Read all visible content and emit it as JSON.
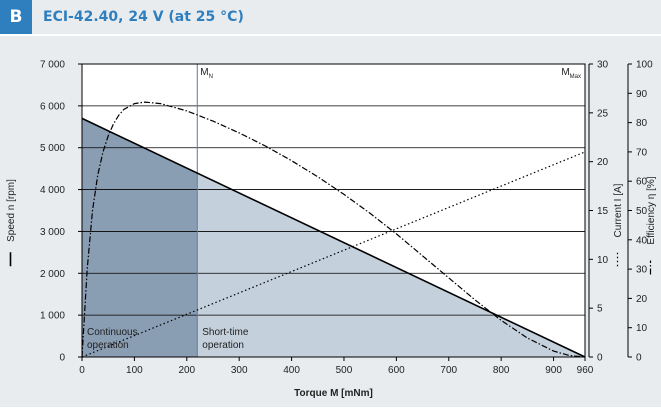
{
  "header": {
    "badge": "B",
    "title": "ECI-42.40, 24 V (at 25 °C)"
  },
  "colors": {
    "accent": "#2f7fbf",
    "panel": "#e9ecef",
    "continuous_fill": "#8a9eb3",
    "short_time_fill": "#c4d0dc"
  },
  "chart_data": {
    "type": "line",
    "xlabel": "Torque M [mNm]",
    "x_ticks": [
      0,
      100,
      200,
      300,
      400,
      500,
      600,
      700,
      800,
      900,
      960
    ],
    "xlim": [
      0,
      960
    ],
    "axes": {
      "speed": {
        "label": "Speed n [rpm]",
        "legend_symbol": "solid",
        "ylim": [
          0,
          7000
        ],
        "ticks": [
          0,
          1000,
          2000,
          3000,
          4000,
          5000,
          6000,
          7000
        ],
        "tick_labels": [
          "0",
          "1 000",
          "2 000",
          "3 000",
          "4 000",
          "5 000",
          "6 000",
          "7 000"
        ]
      },
      "current": {
        "label": "Current I [A]",
        "legend_symbol": "dotted",
        "ylim": [
          0,
          30
        ],
        "ticks": [
          0,
          5,
          10,
          15,
          20,
          25,
          30
        ],
        "tick_labels": [
          "0",
          "5",
          "10",
          "15",
          "20",
          "25",
          "30"
        ]
      },
      "efficiency": {
        "label": "Efficiency η [%]",
        "legend_symbol": "dash-dot",
        "ylim": [
          0,
          100
        ],
        "ticks": [
          0,
          10,
          20,
          30,
          40,
          50,
          60,
          70,
          80,
          90,
          100
        ],
        "tick_labels": [
          "0",
          "10",
          "20",
          "30",
          "40",
          "50",
          "60",
          "70",
          "80",
          "90",
          "100"
        ]
      }
    },
    "series": [
      {
        "name": "Speed n [rpm]",
        "axis": "speed",
        "style": "solid",
        "x": [
          0,
          960
        ],
        "y": [
          5700,
          0
        ]
      },
      {
        "name": "Current I [A]",
        "axis": "current",
        "style": "dotted",
        "x": [
          0,
          960
        ],
        "y": [
          0,
          21
        ]
      },
      {
        "name": "Efficiency η [%]",
        "axis": "efficiency",
        "style": "dash-dot",
        "x": [
          0,
          10,
          20,
          30,
          40,
          50,
          60,
          70,
          80,
          100,
          120,
          150,
          200,
          250,
          300,
          350,
          400,
          450,
          500,
          550,
          600,
          650,
          700,
          750,
          800,
          850,
          900,
          930,
          960
        ],
        "y": [
          0,
          30,
          50,
          62,
          70,
          75.5,
          79.5,
          82.5,
          84.5,
          86.5,
          87,
          86.5,
          84,
          80.5,
          76.5,
          72,
          67,
          61.5,
          55.5,
          49,
          42,
          34.5,
          27,
          19.5,
          12.5,
          6.5,
          2,
          0.5,
          0
        ]
      }
    ],
    "regions": [
      {
        "label": [
          "Continuous",
          "operation"
        ],
        "x_range": [
          0,
          220
        ]
      },
      {
        "label": [
          "Short-time",
          "operation"
        ],
        "x_range": [
          220,
          960
        ]
      }
    ],
    "markers": [
      {
        "label": "M",
        "sub": "N",
        "x": 220
      },
      {
        "label": "M",
        "sub": "Max",
        "x": 960
      }
    ],
    "grid": "horizontal"
  }
}
